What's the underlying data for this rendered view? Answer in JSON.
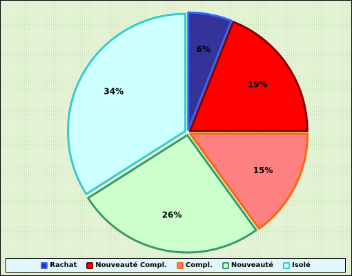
{
  "chart_data": {
    "type": "pie",
    "categories": [
      "Rachat",
      "Nouveauté Compl.",
      "Compl.",
      "Nouveauté",
      "Isolé"
    ],
    "values": [
      6,
      19,
      15,
      26,
      34
    ],
    "data_labels": [
      "6%",
      "19%",
      "15%",
      "26%",
      "34%"
    ],
    "colors": {
      "fill": [
        "#333399",
        "#ff0000",
        "#ff8080",
        "#ccffcc",
        "#ccffff"
      ],
      "border": [
        "#3366ff",
        "#800000",
        "#ff6600",
        "#339966",
        "#33cccc"
      ]
    },
    "start_angle": "12 o'clock, clockwise",
    "legend_placement": "bottom",
    "background": "#e8f5d8"
  }
}
